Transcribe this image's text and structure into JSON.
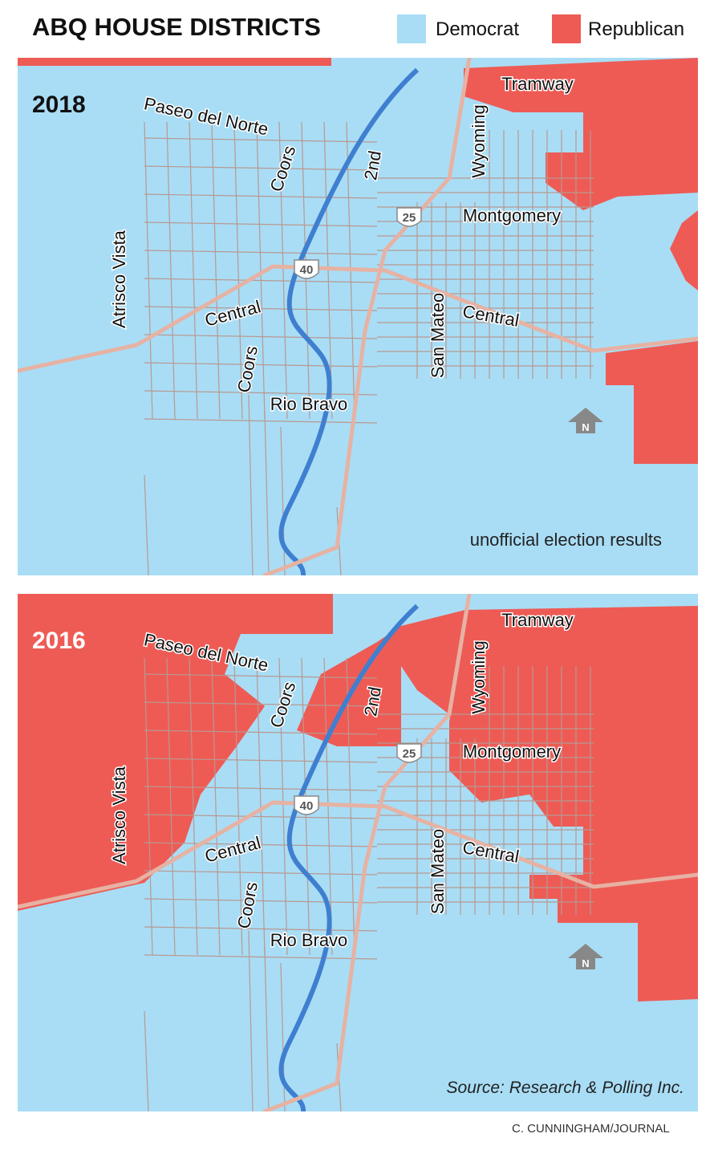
{
  "header": {
    "title": "ABQ HOUSE DISTRICTS",
    "legend": [
      {
        "label": "Democrat",
        "color": "#a9ddf5"
      },
      {
        "label": "Republican",
        "color": "#ee5b55"
      }
    ]
  },
  "maps": [
    {
      "year": "2018",
      "labels": [
        "Paseo del Norte",
        "Coors",
        "2nd",
        "Wyoming",
        "Tramway",
        "Montgomery",
        "25",
        "40",
        "Atrisco Vista",
        "Central",
        "San Mateo",
        "Central",
        "Coors",
        "Rio Bravo",
        "N"
      ],
      "note": "unofficial election results"
    },
    {
      "year": "2016",
      "labels": [
        "Paseo del Norte",
        "Coors",
        "2nd",
        "Wyoming",
        "Tramway",
        "Montgomery",
        "25",
        "40",
        "Atrisco Vista",
        "Central",
        "San Mateo",
        "Central",
        "Coors",
        "Rio Bravo",
        "N"
      ],
      "note": "Source: Research & Polling Inc."
    }
  ],
  "credit": "C. CUNNINGHAM/JOURNAL"
}
